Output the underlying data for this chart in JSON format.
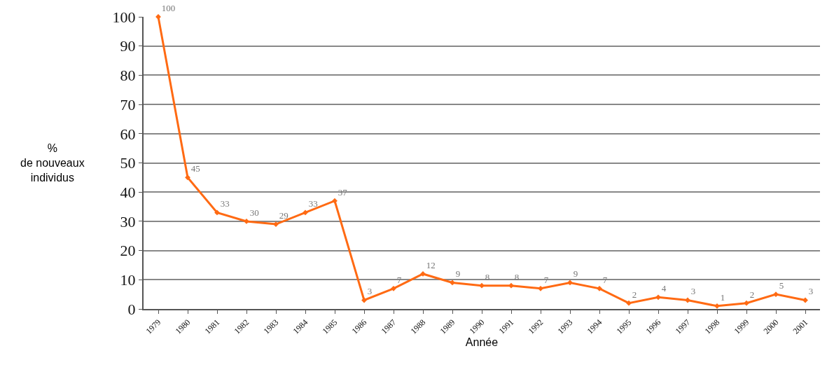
{
  "chart_data": {
    "type": "line",
    "xlabel": "Année",
    "ylabel": "%\nde nouveaux\nindividus",
    "categories": [
      "1979",
      "1980",
      "1981",
      "1982",
      "1983",
      "1984",
      "1985",
      "1986",
      "1987",
      "1988",
      "1989",
      "1990",
      "1991",
      "1992",
      "1993",
      "1994",
      "1995",
      "1996",
      "1997",
      "1998",
      "1999",
      "2000",
      "2001"
    ],
    "series": [
      {
        "color": "#ff6a13",
        "values": [
          100,
          45,
          33,
          30,
          29,
          33,
          37,
          3,
          7,
          12,
          9,
          8,
          8,
          7,
          9,
          7,
          2,
          4,
          3,
          1,
          2,
          5,
          3
        ]
      }
    ],
    "ylim": [
      0,
      100
    ],
    "yticks": [
      0,
      10,
      20,
      30,
      40,
      50,
      60,
      70,
      80,
      90,
      100
    ],
    "grid": "y",
    "marker": "diamond",
    "line_style": "solid",
    "data_labels": true
  }
}
